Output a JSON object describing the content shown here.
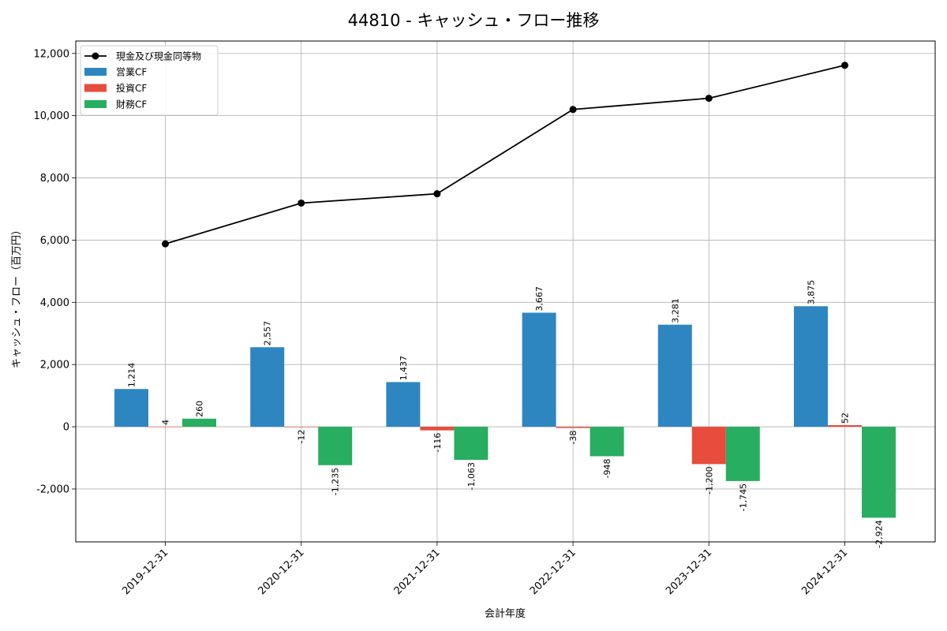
{
  "chart_data": {
    "type": "bar",
    "title": "44810 - キャッシュ・フロー推移",
    "xlabel": "会計年度",
    "ylabel": "キャッシュ・フロー（百万円）",
    "categories": [
      "2019-12-31",
      "2020-12-31",
      "2021-12-31",
      "2022-12-31",
      "2023-12-31",
      "2024-12-31"
    ],
    "ylim": [
      -3700,
      12400
    ],
    "yticks": [
      -2000,
      0,
      2000,
      4000,
      6000,
      8000,
      10000,
      12000
    ],
    "ytick_labels": [
      "-2,000",
      "0",
      "2,000",
      "4,000",
      "6,000",
      "8,000",
      "10,000",
      "12,000"
    ],
    "grid": true,
    "legend_position": "top-left",
    "line_series": {
      "name": "現金及び現金同等物",
      "color": "#000000",
      "values": [
        5880,
        7190,
        7490,
        10200,
        10560,
        11620
      ]
    },
    "series": [
      {
        "name": "営業CF",
        "color": "#2e86c1",
        "values": [
          1214,
          2557,
          1437,
          3667,
          3281,
          3875
        ],
        "labels": [
          "1,214",
          "2,557",
          "1,437",
          "3,667",
          "3,281",
          "3,875"
        ]
      },
      {
        "name": "投資CF",
        "color": "#e74c3c",
        "values": [
          4,
          -12,
          -116,
          -38,
          -1200,
          52
        ],
        "labels": [
          "4",
          "-12",
          "-116",
          "-38",
          "-1,200",
          "52"
        ]
      },
      {
        "name": "財務CF",
        "color": "#27ae60",
        "values": [
          260,
          -1235,
          -1063,
          -948,
          -1745,
          -2924
        ],
        "labels": [
          "260",
          "-1,235",
          "-1,063",
          "-948",
          "-1,745",
          "-2,924"
        ]
      }
    ]
  }
}
